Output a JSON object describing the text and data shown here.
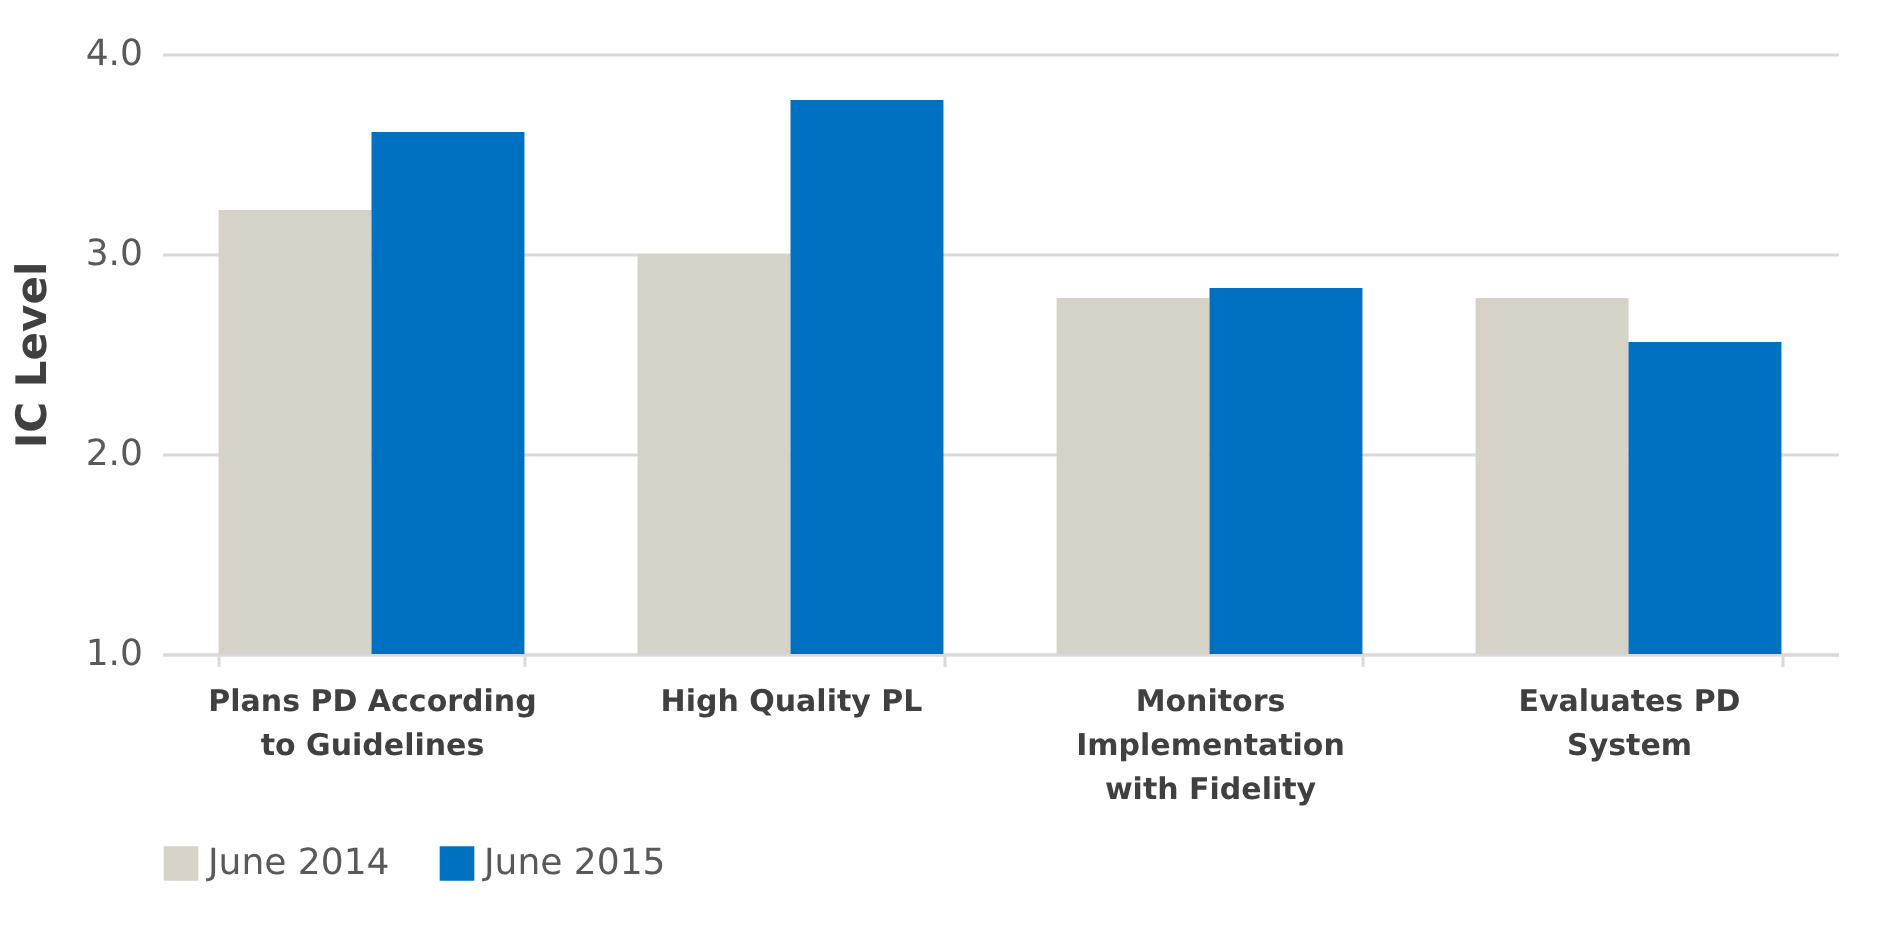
{
  "chart_data": {
    "type": "bar",
    "ylabel": "IC Level",
    "categories": [
      "Plans PD According to Guidelines",
      "High Quality PL",
      "Monitors Implementation with Fidelity",
      "Evaluates PD System"
    ],
    "series": [
      {
        "name": "June 2014",
        "color": "#d5d3c8",
        "values": [
          3.22,
          3.0,
          2.78,
          2.78
        ]
      },
      {
        "name": "June 2015",
        "color": "#0070c0",
        "values": [
          3.61,
          3.77,
          2.83,
          2.56
        ]
      }
    ],
    "ylim": [
      1.0,
      4.0
    ],
    "yticks": [
      {
        "value": 1,
        "label": "1.0"
      },
      {
        "value": 2,
        "label": "2.0"
      },
      {
        "value": 3,
        "label": "3.0"
      },
      {
        "value": 4,
        "label": "4.0"
      }
    ],
    "grid": "y",
    "legend": "bottom"
  }
}
